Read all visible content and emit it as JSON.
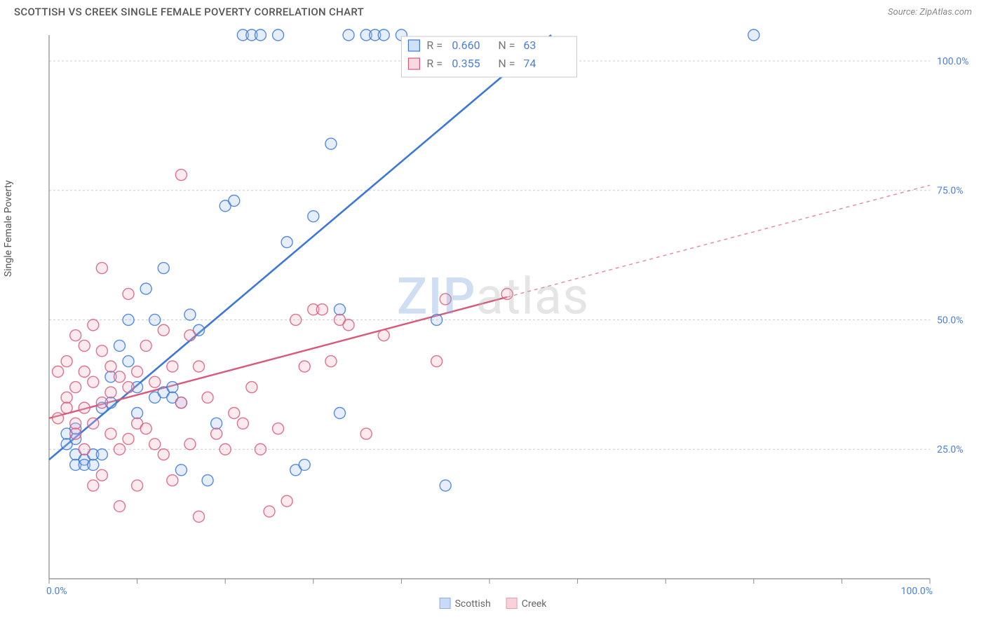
{
  "title": "SCOTTISH VS CREEK SINGLE FEMALE POVERTY CORRELATION CHART",
  "source": "Source: ZipAtlas.com",
  "ylabel": "Single Female Poverty",
  "watermark": {
    "zip": "ZIP",
    "atlas": "atlas"
  },
  "chart": {
    "type": "scatter",
    "background_color": "#ffffff",
    "grid_color": "#cccccc",
    "axis_color": "#888888",
    "axis_label_color": "#4a7fd8",
    "x_range": [
      0,
      100
    ],
    "y_range": [
      0,
      105
    ],
    "x_ticks": [
      0,
      10,
      20,
      30,
      40,
      50,
      60,
      70,
      80,
      90,
      100
    ],
    "x_visible_labels": {
      "0": "0.0%",
      "100": "100.0%"
    },
    "y_gridlines": [
      25,
      50,
      75,
      100
    ],
    "y_labels": {
      "25": "25.0%",
      "50": "50.0%",
      "75": "75.0%",
      "100": "100.0%"
    },
    "marker_radius": 8,
    "marker_stroke_width": 1.4,
    "marker_fill_opacity": 0.28,
    "series": [
      {
        "name": "Scottish",
        "color_stroke": "#3b78d8",
        "color_fill": "#a4c2f4",
        "r": "0.660",
        "n": "63",
        "regression": {
          "x1": 0,
          "y1": 23,
          "x2": 57,
          "y2": 105,
          "solid_until_x": 57,
          "width": 2.6
        },
        "points": [
          [
            2,
            28
          ],
          [
            2,
            26
          ],
          [
            3,
            27
          ],
          [
            3,
            24
          ],
          [
            3,
            22
          ],
          [
            3,
            29
          ],
          [
            4,
            23
          ],
          [
            4,
            22
          ],
          [
            5,
            22
          ],
          [
            5,
            24
          ],
          [
            6,
            24
          ],
          [
            6,
            33
          ],
          [
            7,
            34
          ],
          [
            7,
            39
          ],
          [
            8,
            45
          ],
          [
            9,
            50
          ],
          [
            9,
            42
          ],
          [
            10,
            37
          ],
          [
            10,
            32
          ],
          [
            11,
            56
          ],
          [
            12,
            35
          ],
          [
            12,
            50
          ],
          [
            13,
            60
          ],
          [
            13,
            36
          ],
          [
            14,
            37
          ],
          [
            14,
            35
          ],
          [
            15,
            34
          ],
          [
            15,
            21
          ],
          [
            16,
            51
          ],
          [
            17,
            48
          ],
          [
            18,
            19
          ],
          [
            19,
            30
          ],
          [
            20,
            72
          ],
          [
            21,
            73
          ],
          [
            22,
            105
          ],
          [
            23,
            105
          ],
          [
            24,
            105
          ],
          [
            26,
            105
          ],
          [
            27,
            65
          ],
          [
            28,
            21
          ],
          [
            29,
            22
          ],
          [
            30,
            70
          ],
          [
            32,
            84
          ],
          [
            33,
            52
          ],
          [
            33,
            32
          ],
          [
            34,
            105
          ],
          [
            36,
            105
          ],
          [
            37,
            105
          ],
          [
            38,
            105
          ],
          [
            40,
            105
          ],
          [
            44,
            50
          ],
          [
            45,
            18
          ],
          [
            80,
            105
          ]
        ]
      },
      {
        "name": "Creek",
        "color_stroke": "#d85a7a",
        "color_fill": "#f4b4c4",
        "r": "0.355",
        "n": "74",
        "regression": {
          "x1": 0,
          "y1": 31,
          "x2": 100,
          "y2": 76,
          "solid_until_x": 52,
          "width": 2.4
        },
        "points": [
          [
            1,
            31
          ],
          [
            1,
            40
          ],
          [
            2,
            35
          ],
          [
            2,
            33
          ],
          [
            2,
            42
          ],
          [
            3,
            47
          ],
          [
            3,
            37
          ],
          [
            3,
            30
          ],
          [
            3,
            28
          ],
          [
            4,
            45
          ],
          [
            4,
            40
          ],
          [
            4,
            33
          ],
          [
            4,
            25
          ],
          [
            5,
            49
          ],
          [
            5,
            38
          ],
          [
            5,
            30
          ],
          [
            5,
            18
          ],
          [
            6,
            60
          ],
          [
            6,
            44
          ],
          [
            6,
            34
          ],
          [
            6,
            20
          ],
          [
            7,
            41
          ],
          [
            7,
            36
          ],
          [
            7,
            28
          ],
          [
            8,
            39
          ],
          [
            8,
            25
          ],
          [
            8,
            14
          ],
          [
            9,
            55
          ],
          [
            9,
            37
          ],
          [
            9,
            27
          ],
          [
            10,
            40
          ],
          [
            10,
            30
          ],
          [
            10,
            18
          ],
          [
            11,
            45
          ],
          [
            11,
            29
          ],
          [
            12,
            38
          ],
          [
            12,
            26
          ],
          [
            13,
            48
          ],
          [
            13,
            24
          ],
          [
            14,
            41
          ],
          [
            14,
            19
          ],
          [
            15,
            78
          ],
          [
            15,
            34
          ],
          [
            16,
            47
          ],
          [
            16,
            26
          ],
          [
            17,
            41
          ],
          [
            17,
            12
          ],
          [
            18,
            35
          ],
          [
            19,
            28
          ],
          [
            20,
            25
          ],
          [
            21,
            32
          ],
          [
            22,
            30
          ],
          [
            23,
            37
          ],
          [
            24,
            25
          ],
          [
            25,
            13
          ],
          [
            26,
            29
          ],
          [
            27,
            15
          ],
          [
            28,
            50
          ],
          [
            29,
            41
          ],
          [
            30,
            52
          ],
          [
            31,
            52
          ],
          [
            32,
            42
          ],
          [
            33,
            50
          ],
          [
            34,
            49
          ],
          [
            36,
            28
          ],
          [
            38,
            47
          ],
          [
            44,
            42
          ],
          [
            45,
            54
          ],
          [
            52,
            55
          ]
        ]
      }
    ],
    "stats_box": {
      "x": 40,
      "width_pct": 20,
      "bg": "#ffffff",
      "border": "#c8c8c8",
      "swatch_size": 16
    },
    "legend_bottom": [
      {
        "label": "Scottish",
        "stroke": "#3b78d8",
        "fill": "#a4c2f4"
      },
      {
        "label": "Creek",
        "stroke": "#d85a7a",
        "fill": "#f4b4c4"
      }
    ]
  }
}
